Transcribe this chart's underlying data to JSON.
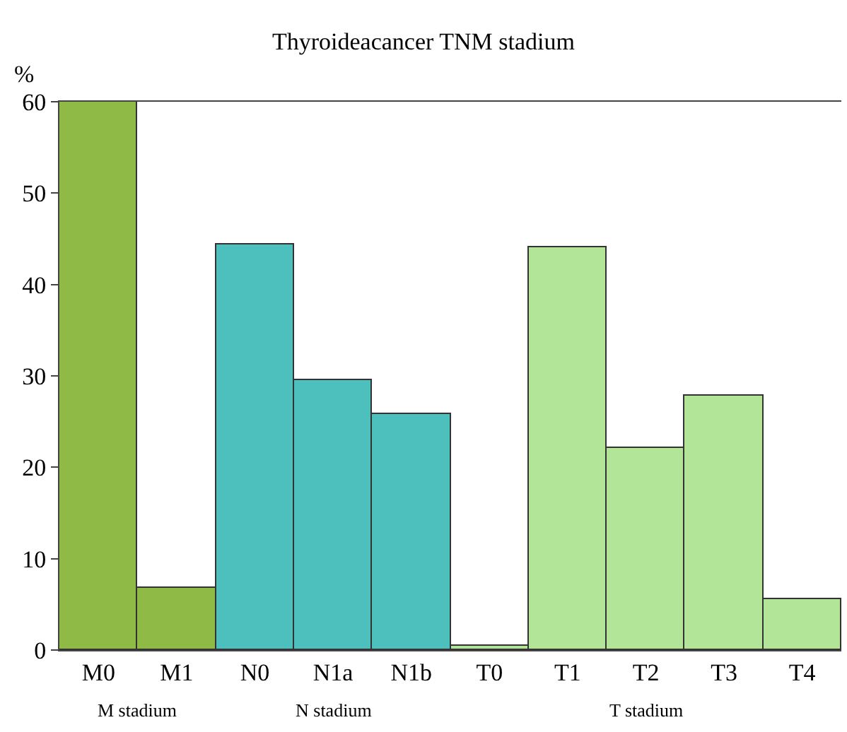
{
  "chart_data": {
    "type": "bar",
    "title": "Thyroideacancer TNM stadium",
    "ylabel": "%",
    "categories": [
      "M0",
      "M1",
      "N0",
      "N1a",
      "N1b",
      "T0",
      "T1",
      "T2",
      "T3",
      "T4"
    ],
    "values": [
      60,
      6.8,
      44.4,
      29.5,
      25.9,
      0.5,
      44.1,
      22.1,
      27.9,
      5.6
    ],
    "colors": [
      "#8fba46",
      "#8fba46",
      "#4dbfbd",
      "#4dbfbd",
      "#4dbfbd",
      "#b2e597",
      "#b2e597",
      "#b2e597",
      "#b2e597",
      "#b2e597"
    ],
    "annotations": [
      "M stadium",
      "N stadium",
      "T stadium"
    ],
    "ylim": [
      0,
      60
    ],
    "yticks": [
      0,
      10,
      20,
      30,
      40,
      50,
      60
    ]
  }
}
